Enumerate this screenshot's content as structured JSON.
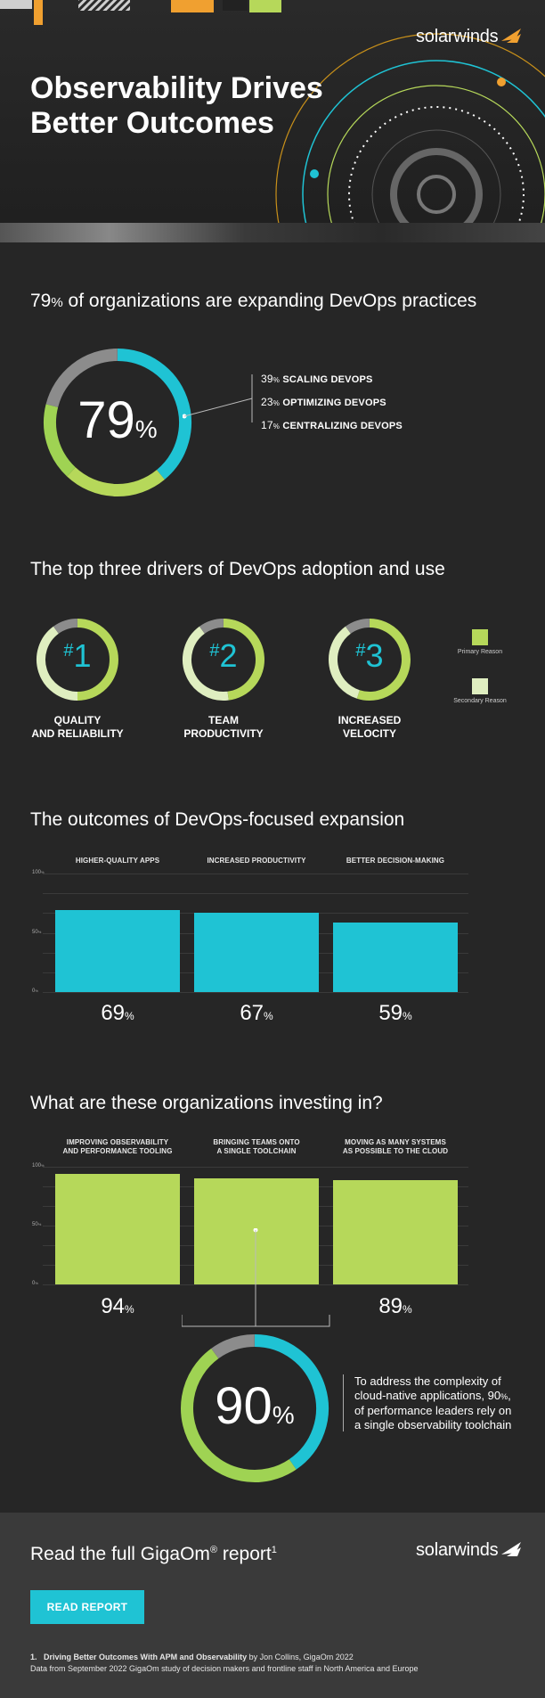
{
  "header": {
    "brand": "solarwinds",
    "title_line1": "Observability Drives",
    "title_line2": "Better Outcomes"
  },
  "colors": {
    "cyan": "#1fc3d4",
    "green": "#9fd353",
    "lime": "#b6d85a",
    "pale_green": "#dfeec0",
    "gray": "#8c8c8c",
    "orange": "#f0a030"
  },
  "section1": {
    "title_pct": "79",
    "title_pct_sign": "%",
    "title_text": " of organizations are expanding DevOps practices",
    "donut_value": "79",
    "donut_sign": "%",
    "segments": [
      {
        "pct": "39",
        "sign": "%",
        "label": "SCALING DEVOPS",
        "value": 39,
        "color": "cyan"
      },
      {
        "pct": "23",
        "sign": "%",
        "label": "OPTIMIZING DEVOPS",
        "value": 23,
        "color": "lime"
      },
      {
        "pct": "17",
        "sign": "%",
        "label": "CENTRALIZING DEVOPS",
        "value": 17,
        "color": "green"
      }
    ],
    "remainder": 21
  },
  "section2": {
    "title": "The top three drivers of DevOps adoption and use",
    "drivers": [
      {
        "rank": "1",
        "line1": "QUALITY",
        "line2": "AND RELIABILITY",
        "primary": 0.5,
        "secondary": 0.4
      },
      {
        "rank": "2",
        "line1": "TEAM",
        "line2": "PRODUCTIVITY",
        "primary": 0.48,
        "secondary": 0.42
      },
      {
        "rank": "3",
        "line1": "INCREASED",
        "line2": "VELOCITY",
        "primary": 0.55,
        "secondary": 0.35
      }
    ],
    "hash": "#",
    "key_primary": "Primary Reason",
    "key_secondary": "Secondary Reason"
  },
  "section3": {
    "title": "The outcomes of DevOps-focused expansion",
    "axis": [
      "100",
      "50",
      "0"
    ],
    "axis_unit": "%",
    "chart_data": {
      "type": "bar",
      "categories": [
        "HIGHER-QUALITY APPS",
        "INCREASED PRODUCTIVITY",
        "BETTER DECISION-MAKING"
      ],
      "values": [
        69,
        67,
        59
      ],
      "ylim": [
        0,
        100
      ]
    },
    "labels": [
      "69",
      "67",
      "59"
    ],
    "sign": "%"
  },
  "section4": {
    "title": "What are these organizations investing in?",
    "axis": [
      "100",
      "50",
      "0"
    ],
    "axis_unit": "%",
    "headers": [
      {
        "l1": "IMPROVING OBSERVABILITY",
        "l2": "AND PERFORMANCE TOOLING"
      },
      {
        "l1": "BRINGING TEAMS ONTO",
        "l2": "A SINGLE TOOLCHAIN"
      },
      {
        "l1": "MOVING AS MANY SYSTEMS",
        "l2": "AS POSSIBLE TO THE CLOUD"
      }
    ],
    "chart_data": {
      "type": "bar",
      "categories": [
        "IMPROVING OBSERVABILITY AND PERFORMANCE TOOLING",
        "BRINGING TEAMS ONTO A SINGLE TOOLCHAIN",
        "MOVING AS MANY SYSTEMS AS POSSIBLE TO THE CLOUD"
      ],
      "values": [
        94,
        90,
        89
      ],
      "ylim": [
        0,
        100
      ]
    },
    "labels": [
      "94",
      "89"
    ],
    "sign": "%",
    "donut_value": "90",
    "donut_sign": "%",
    "callout_line1": "To address the complexity of",
    "callout_line2": "cloud-native applications, 90",
    "callout_line2_sign": "%",
    "callout_line3": "of performance leaders rely on",
    "callout_line4": "a single observability toolchain"
  },
  "footer": {
    "title": "Read the full GigaOm",
    "reg": "®",
    "title_tail": " report",
    "sup": "1",
    "button": "READ REPORT",
    "fn_num": "1.",
    "fn_bold": "Driving Better Outcomes With APM and Observability",
    "fn_rest": " by Jon Collins, GigaOm 2022",
    "fn_line2": "Data from September 2022 GigaOm study of decision makers and frontline staff in North America and Europe"
  }
}
